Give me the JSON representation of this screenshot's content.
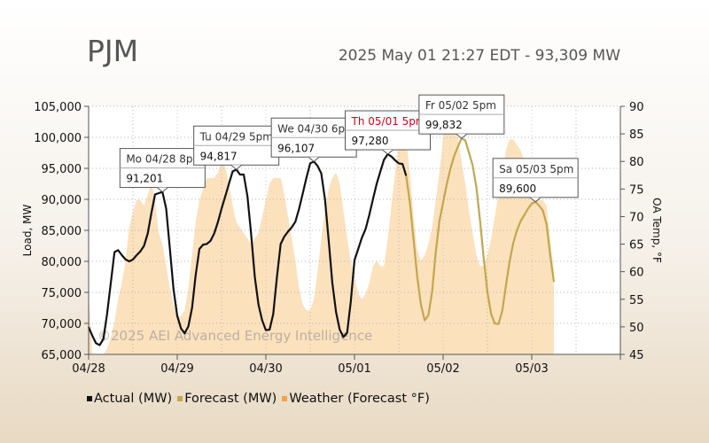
{
  "header": {
    "title": "PJM",
    "status": "2025 May 01 21:27 EDT - 93,309 MW"
  },
  "watermark": "©2025 AEI Advanced Energy Intelligence",
  "chart_data": {
    "type": "line",
    "ylabel": "Load, MW",
    "y2label": "OA Temp, °F",
    "ylim": [
      65000,
      105000
    ],
    "y2lim": [
      45,
      90
    ],
    "x_ticks": [
      "04/28",
      "04/29",
      "04/30",
      "05/01",
      "05/02",
      "05/03"
    ],
    "y_ticks": [
      "65,000",
      "70,000",
      "75,000",
      "80,000",
      "85,000",
      "90,000",
      "95,000",
      "100,000",
      "105,000"
    ],
    "y2_ticks": [
      "45",
      "50",
      "55",
      "60",
      "65",
      "70",
      "75",
      "80",
      "85",
      "90"
    ],
    "series": [
      {
        "name": "Actual (MW)",
        "color": "#111111",
        "points": [
          [
            0,
            69400
          ],
          [
            1,
            68000
          ],
          [
            2,
            66800
          ],
          [
            3,
            66500
          ],
          [
            4,
            67500
          ],
          [
            5,
            71500
          ],
          [
            6,
            76500
          ],
          [
            7,
            81500
          ],
          [
            8,
            81800
          ],
          [
            9,
            81000
          ],
          [
            10,
            80300
          ],
          [
            11,
            80000
          ],
          [
            12,
            80300
          ],
          [
            13,
            81000
          ],
          [
            14,
            81600
          ],
          [
            15,
            82500
          ],
          [
            16,
            84500
          ],
          [
            17,
            87800
          ],
          [
            18,
            90800
          ],
          [
            19,
            91000
          ],
          [
            20,
            91201
          ],
          [
            21,
            88500
          ],
          [
            22,
            82000
          ],
          [
            23,
            75500
          ],
          [
            24,
            71200
          ],
          [
            25,
            69200
          ],
          [
            26,
            68400
          ],
          [
            27,
            69500
          ],
          [
            28,
            72500
          ],
          [
            29,
            77800
          ],
          [
            30,
            82000
          ],
          [
            31,
            82700
          ],
          [
            32,
            82800
          ],
          [
            33,
            83300
          ],
          [
            34,
            84500
          ],
          [
            35,
            86300
          ],
          [
            36,
            88500
          ],
          [
            37,
            90500
          ],
          [
            38,
            92500
          ],
          [
            39,
            94500
          ],
          [
            40,
            94817
          ],
          [
            41,
            94000
          ],
          [
            42,
            94000
          ],
          [
            43,
            90500
          ],
          [
            44,
            84500
          ],
          [
            45,
            77500
          ],
          [
            46,
            73000
          ],
          [
            47,
            70500
          ],
          [
            48,
            68900
          ],
          [
            49,
            69000
          ],
          [
            50,
            71500
          ],
          [
            51,
            77500
          ],
          [
            52,
            82800
          ],
          [
            53,
            84000
          ],
          [
            54,
            84800
          ],
          [
            55,
            85500
          ],
          [
            56,
            86400
          ],
          [
            57,
            88500
          ],
          [
            58,
            91000
          ],
          [
            59,
            93500
          ],
          [
            60,
            95800
          ],
          [
            61,
            96107
          ],
          [
            62,
            95400
          ],
          [
            63,
            94200
          ],
          [
            64,
            90000
          ],
          [
            65,
            83500
          ],
          [
            66,
            76500
          ],
          [
            67,
            71800
          ],
          [
            68,
            69000
          ],
          [
            69,
            67800
          ],
          [
            70,
            68500
          ],
          [
            71,
            73500
          ],
          [
            72,
            80200
          ],
          [
            73,
            82000
          ],
          [
            74,
            83800
          ],
          [
            75,
            85200
          ],
          [
            76,
            87500
          ],
          [
            77,
            90000
          ],
          [
            78,
            92500
          ],
          [
            79,
            94500
          ],
          [
            80,
            96400
          ],
          [
            81,
            97280
          ],
          [
            82,
            96900
          ],
          [
            83,
            96300
          ],
          [
            84,
            95800
          ],
          [
            85,
            95700
          ],
          [
            86,
            93800
          ]
        ]
      },
      {
        "name": "Forecast (MW)",
        "color": "#c2a74e",
        "points": [
          [
            86,
            93800
          ],
          [
            87,
            89500
          ],
          [
            88,
            83500
          ],
          [
            89,
            77500
          ],
          [
            90,
            73000
          ],
          [
            91,
            70500
          ],
          [
            92,
            71300
          ],
          [
            93,
            75000
          ],
          [
            94,
            81500
          ],
          [
            95,
            86500
          ],
          [
            96,
            89500
          ],
          [
            97,
            92500
          ],
          [
            98,
            95000
          ],
          [
            99,
            97000
          ],
          [
            100,
            98500
          ],
          [
            101,
            99832
          ],
          [
            102,
            99500
          ],
          [
            103,
            97500
          ],
          [
            104,
            95500
          ],
          [
            105,
            92000
          ],
          [
            106,
            86500
          ],
          [
            107,
            80500
          ],
          [
            108,
            75000
          ],
          [
            109,
            71500
          ],
          [
            110,
            70000
          ],
          [
            111,
            69900
          ],
          [
            112,
            72000
          ],
          [
            113,
            76000
          ],
          [
            114,
            80000
          ],
          [
            115,
            83000
          ],
          [
            116,
            85000
          ],
          [
            117,
            86500
          ],
          [
            118,
            87500
          ],
          [
            119,
            88500
          ],
          [
            120,
            89300
          ],
          [
            121,
            89600
          ],
          [
            122,
            89000
          ],
          [
            123,
            88200
          ],
          [
            124,
            86000
          ],
          [
            125,
            81000
          ],
          [
            126,
            76700
          ]
        ]
      },
      {
        "name": "Weather (Forecast °F)",
        "color": "#f5a24a",
        "axis": "right",
        "points": [
          [
            0,
            56
          ],
          [
            1,
            45
          ],
          [
            2,
            45
          ],
          [
            3,
            45
          ],
          [
            4,
            45
          ],
          [
            5,
            46
          ],
          [
            6,
            48
          ],
          [
            7,
            51
          ],
          [
            8,
            55
          ],
          [
            9,
            58
          ],
          [
            10,
            62
          ],
          [
            11,
            68
          ],
          [
            12,
            71
          ],
          [
            13,
            73
          ],
          [
            14,
            73
          ],
          [
            15,
            72
          ],
          [
            16,
            74
          ],
          [
            17,
            76
          ],
          [
            18,
            73
          ],
          [
            19,
            67
          ],
          [
            20,
            65
          ],
          [
            21,
            61
          ],
          [
            22,
            57
          ],
          [
            23,
            54
          ],
          [
            24,
            52
          ],
          [
            25,
            52
          ],
          [
            26,
            53
          ],
          [
            27,
            57
          ],
          [
            28,
            63
          ],
          [
            29,
            69
          ],
          [
            30,
            73
          ],
          [
            31,
            75
          ],
          [
            32,
            77
          ],
          [
            33,
            77
          ],
          [
            34,
            77
          ],
          [
            35,
            78
          ],
          [
            36,
            80
          ],
          [
            37,
            79
          ],
          [
            38,
            76
          ],
          [
            39,
            72
          ],
          [
            40,
            69
          ],
          [
            41,
            68
          ],
          [
            42,
            67
          ],
          [
            43,
            66
          ],
          [
            44,
            65
          ],
          [
            45,
            66
          ],
          [
            46,
            67
          ],
          [
            47,
            70
          ],
          [
            48,
            73
          ],
          [
            49,
            76
          ],
          [
            50,
            77
          ],
          [
            51,
            77
          ],
          [
            52,
            77
          ],
          [
            53,
            74
          ],
          [
            54,
            70
          ],
          [
            55,
            66
          ],
          [
            56,
            62
          ],
          [
            57,
            57
          ],
          [
            58,
            54
          ],
          [
            59,
            53
          ],
          [
            60,
            53
          ],
          [
            61,
            55
          ],
          [
            62,
            60
          ],
          [
            63,
            66
          ],
          [
            64,
            71
          ],
          [
            65,
            75
          ],
          [
            66,
            77
          ],
          [
            67,
            78
          ],
          [
            68,
            76
          ],
          [
            69,
            71
          ],
          [
            70,
            66
          ],
          [
            71,
            62
          ],
          [
            72,
            59
          ],
          [
            73,
            56
          ],
          [
            74,
            55
          ],
          [
            75,
            56
          ],
          [
            76,
            58
          ],
          [
            77,
            61
          ],
          [
            78,
            62
          ],
          [
            79,
            61
          ],
          [
            80,
            61
          ],
          [
            81,
            66
          ],
          [
            82,
            72
          ],
          [
            83,
            78
          ],
          [
            84,
            84
          ],
          [
            85,
            85
          ],
          [
            86,
            84
          ],
          [
            87,
            78
          ],
          [
            88,
            70
          ],
          [
            89,
            64
          ],
          [
            90,
            62
          ],
          [
            91,
            63
          ],
          [
            92,
            65
          ],
          [
            93,
            68
          ],
          [
            94,
            73
          ],
          [
            95,
            78
          ],
          [
            96,
            84
          ],
          [
            97,
            89
          ],
          [
            98,
            89
          ],
          [
            99,
            87
          ],
          [
            100,
            84
          ],
          [
            101,
            80
          ],
          [
            102,
            76
          ],
          [
            103,
            71
          ],
          [
            104,
            67
          ],
          [
            105,
            63
          ],
          [
            106,
            61
          ],
          [
            107,
            61
          ],
          [
            108,
            63
          ],
          [
            109,
            66
          ],
          [
            110,
            70
          ],
          [
            111,
            74
          ],
          [
            112,
            78
          ],
          [
            113,
            82
          ],
          [
            114,
            84
          ],
          [
            115,
            84
          ],
          [
            116,
            83
          ],
          [
            117,
            82
          ],
          [
            118,
            80
          ],
          [
            119,
            78
          ],
          [
            120,
            76
          ],
          [
            121,
            74
          ],
          [
            122,
            73
          ],
          [
            123,
            73
          ],
          [
            124,
            72
          ],
          [
            125,
            66
          ],
          [
            126,
            60
          ]
        ]
      }
    ],
    "annotations": [
      {
        "label": "Mo 04/28 8pm",
        "value": "91,201",
        "x": 20,
        "y": 91201,
        "highlight": false
      },
      {
        "label": "Tu 04/29 5pm",
        "value": "94,817",
        "x": 40,
        "y": 94817,
        "highlight": false
      },
      {
        "label": "We 04/30 6pm",
        "value": "96,107",
        "x": 61,
        "y": 96107,
        "highlight": false
      },
      {
        "label": "Th 05/01 5pm",
        "value": "97,280",
        "x": 81,
        "y": 97280,
        "highlight": true
      },
      {
        "label": "Fr 05/02 5pm",
        "value": "99,832",
        "x": 101,
        "y": 99832,
        "highlight": false
      },
      {
        "label": "Sa 05/03 5pm",
        "value": "89,600",
        "x": 121,
        "y": 89600,
        "highlight": false
      }
    ],
    "highlight_color": "#d0021b",
    "grid": true,
    "legend_position": "bottom-left"
  }
}
